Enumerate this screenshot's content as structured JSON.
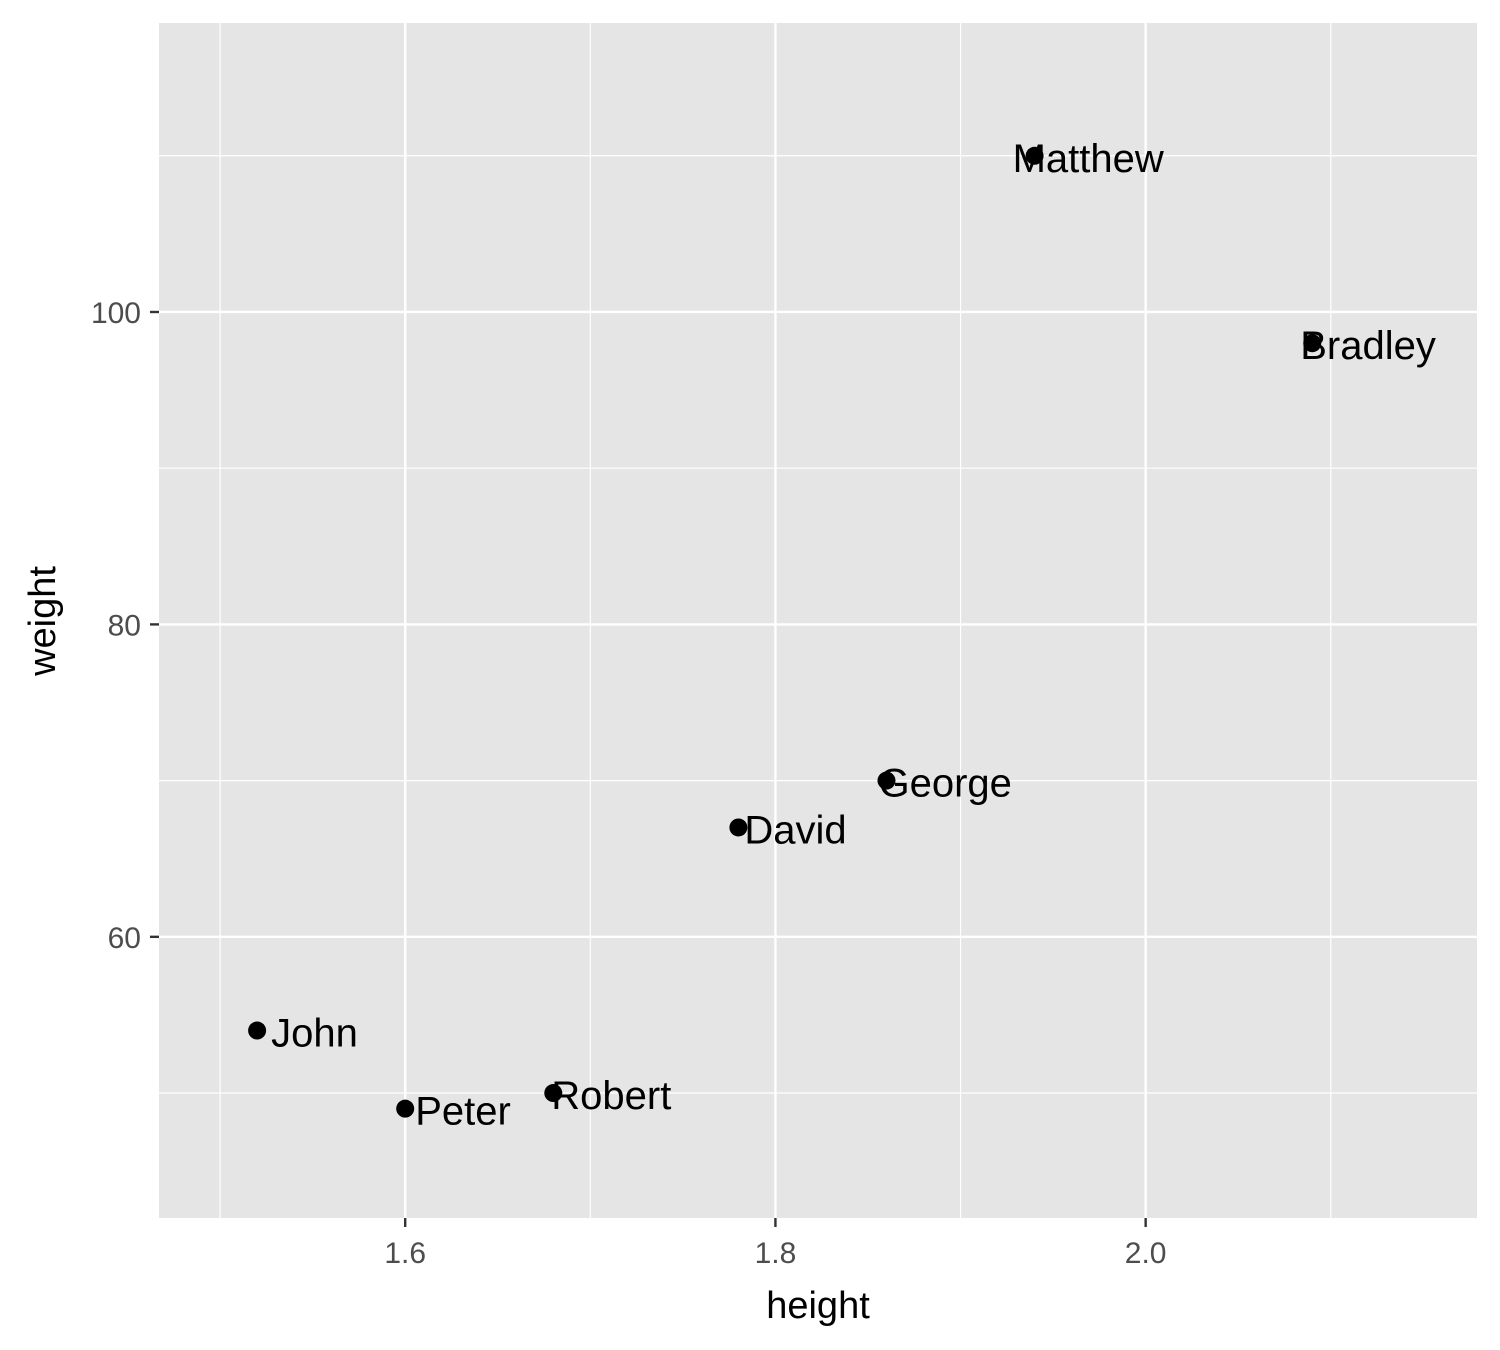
{
  "chart_data": {
    "type": "scatter",
    "xlabel": "height",
    "ylabel": "weight",
    "xlim": [
      1.467,
      2.179
    ],
    "ylim": [
      42.0,
      118.5
    ],
    "x_ticks": [
      1.6,
      1.8,
      2.0
    ],
    "x_tick_labels": [
      "1.6",
      "1.8",
      "2.0"
    ],
    "x_minor": [
      1.5,
      1.7,
      1.9,
      2.1
    ],
    "y_ticks": [
      60,
      80,
      100
    ],
    "y_tick_labels": [
      "60",
      "80",
      "100"
    ],
    "y_minor": [
      50,
      70,
      90,
      110
    ],
    "grid": true,
    "colors": {
      "panel": "#e5e5e5",
      "grid": "#ffffff",
      "point": "#000000",
      "tick_text": "#4d4d4d"
    },
    "points": [
      {
        "label": "John",
        "x": 1.52,
        "y": 54
      },
      {
        "label": "Peter",
        "x": 1.6,
        "y": 49
      },
      {
        "label": "Robert",
        "x": 1.68,
        "y": 50
      },
      {
        "label": "David",
        "x": 1.78,
        "y": 67
      },
      {
        "label": "George",
        "x": 1.86,
        "y": 70
      },
      {
        "label": "Matthew",
        "x": 1.94,
        "y": 110
      },
      {
        "label": "Bradley",
        "x": 2.09,
        "y": 98
      }
    ]
  }
}
